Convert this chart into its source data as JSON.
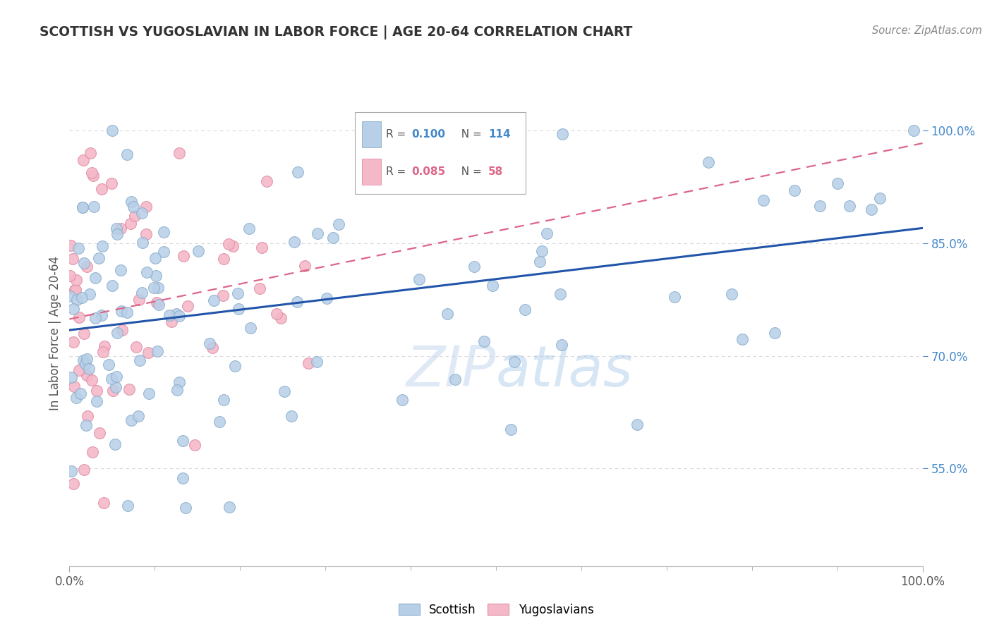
{
  "title": "SCOTTISH VS YUGOSLAVIAN IN LABOR FORCE | AGE 20-64 CORRELATION CHART",
  "source": "Source: ZipAtlas.com",
  "ylabel": "In Labor Force | Age 20-64",
  "watermark_zip": "ZIP",
  "watermark_atlas": "atlas",
  "scottish_color": "#b8cfe8",
  "scottish_edge": "#8aaecc",
  "yugoslavian_color": "#f5b8c8",
  "yugoslavian_edge": "#e090a8",
  "scottish_line_color": "#2255aa",
  "yugoslavian_line_color": "#dd6688",
  "background_color": "#ffffff",
  "grid_color": "#d8d8d8",
  "ytick_color": "#4488cc",
  "ytick_vals": [
    55,
    70,
    85,
    100
  ],
  "ytick_labels": [
    "55.0%",
    "70.0%",
    "85.0%",
    "100.0%"
  ],
  "xlim": [
    0,
    100
  ],
  "ylim": [
    42,
    104
  ],
  "scottish_R": 0.1,
  "scottish_N": 114,
  "yugoslavian_R": 0.085,
  "yugoslavian_N": 58,
  "scot_line_x0": 0,
  "scot_line_y0": 72,
  "scot_line_x1": 100,
  "scot_line_y1": 82,
  "yugo_line_x0": 0,
  "yugo_line_y0": 79,
  "yugo_line_x1": 30,
  "yugo_line_y1": 84
}
